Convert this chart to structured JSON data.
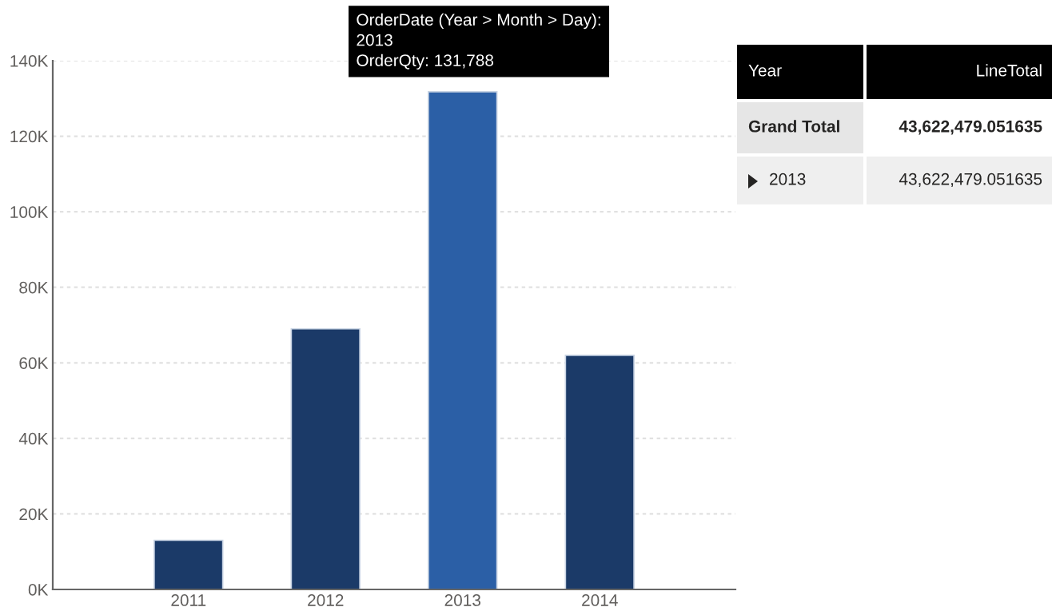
{
  "chart_data": [
    {
      "type": "bar",
      "categories": [
        "2011",
        "2012",
        "2013",
        "2014"
      ],
      "values": [
        13000,
        69000,
        131788,
        62000
      ],
      "colors": [
        "#1b3a68",
        "#1b3a68",
        "#2b5fa6",
        "#1b3a68"
      ],
      "ylim": [
        0,
        140000
      ],
      "yticks": [
        {
          "value": 0,
          "label": "0K"
        },
        {
          "value": 20000,
          "label": "20K"
        },
        {
          "value": 40000,
          "label": "40K"
        },
        {
          "value": 60000,
          "label": "60K"
        },
        {
          "value": 80000,
          "label": "80K"
        },
        {
          "value": 100000,
          "label": "100K"
        },
        {
          "value": 120000,
          "label": "120K"
        },
        {
          "value": 140000,
          "label": "140K"
        }
      ],
      "grid": "y",
      "annotations": [
        {
          "text": "OrderDate (Year > Month > Day):\n2013\nOrderQty: 131,788",
          "x": "2013",
          "y": 131788
        }
      ]
    },
    {
      "type": "other",
      "annotations": [
        "Year",
        "LineTotal",
        "Grand Total",
        "43,622,479.051635",
        "2013",
        "43,622,479.051635"
      ]
    }
  ]
}
